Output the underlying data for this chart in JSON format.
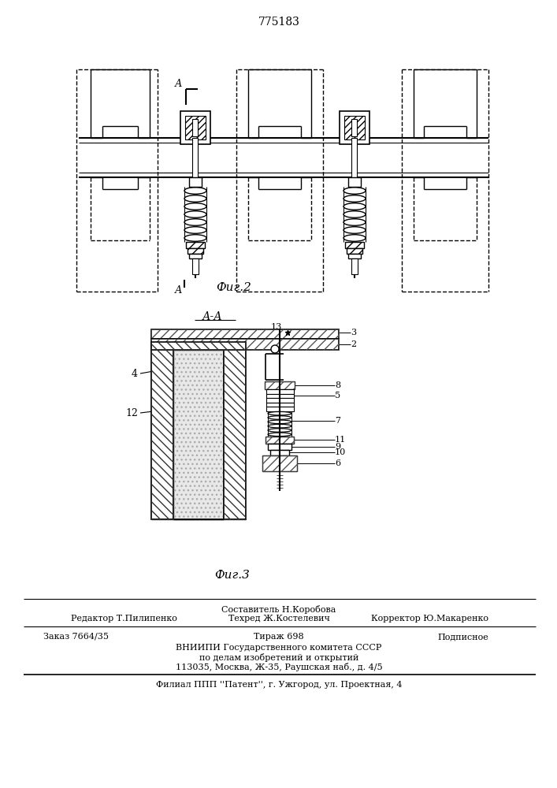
{
  "patent_number": "775183",
  "fig2_label": "Фиг.2",
  "fig3_label": "Фиг.3",
  "section_label": "А-А",
  "footer_line1_left": "Редактор Т.Пилипенко",
  "footer_line1_center_top": "Составитель Н.Коробова",
  "footer_line1_center_bot": "Техред Ж.Костелевич",
  "footer_line1_right": "Корректор Ю.Макаренко",
  "footer_line2_col1": "Заказ 7664/35",
  "footer_line2_col2": "Тираж 698",
  "footer_line2_col3": "Подписное",
  "footer_line3": "ВНИИПИ Государственного комитета СССР",
  "footer_line4": "по делам изобретений и открытий",
  "footer_line5": "113035, Москва, Ж-35, Раушская наб., д. 4/5",
  "footer_line6": "Филиал ППП ''Патент'', г. Ужгород, ул. Проектная, 4",
  "bg_color": "#ffffff"
}
